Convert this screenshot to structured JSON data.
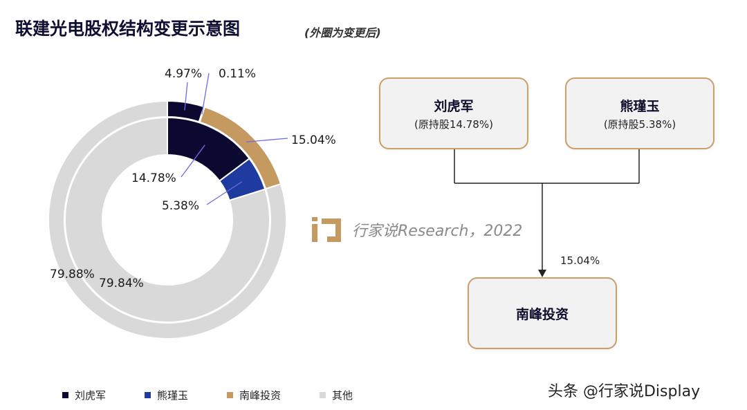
{
  "header": {
    "title": "联建光电股权结构变更示意图",
    "subtitle": "(外圈为变更后)"
  },
  "chart_data": {
    "type": "pie",
    "variant": "double-donut",
    "categories": [
      "刘虎军",
      "熊瑾玉",
      "南峰投资",
      "其他"
    ],
    "colors": [
      "#0b0930",
      "#1f3ba0",
      "#c49a60",
      "#d9d9d9"
    ],
    "series": [
      {
        "ring": "outer",
        "values": [
          4.97,
          0.11,
          15.04,
          79.88
        ],
        "labels": [
          "4.97%",
          "0.11%",
          "15.04%",
          "79.88%"
        ]
      },
      {
        "ring": "inner",
        "values": [
          14.78,
          5.38,
          0,
          79.84
        ],
        "labels": [
          "14.78%",
          "5.38%",
          "",
          "79.84%"
        ]
      }
    ],
    "legend_position": "bottom"
  },
  "diagram": {
    "shareholders": [
      {
        "name": "刘虎军",
        "note": "(原持股14.78%)"
      },
      {
        "name": "熊瑾玉",
        "note": "(原持股5.38%)"
      }
    ],
    "target": {
      "name": "南峰投资"
    },
    "arrow_label": "15.04%"
  },
  "watermark": {
    "text": "行家说Research，2022"
  },
  "footer": {
    "text": "头条 @行家说Display"
  },
  "legend": {
    "items": [
      "刘虎军",
      "熊瑾玉",
      "南峰投资",
      "其他"
    ]
  }
}
